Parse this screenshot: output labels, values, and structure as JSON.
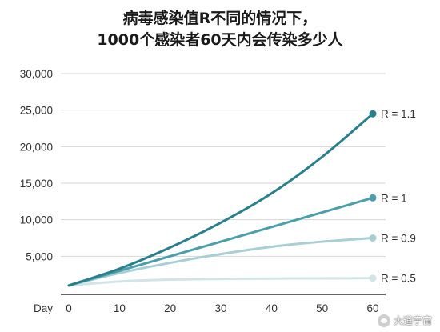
{
  "chart_data": {
    "type": "line",
    "title": "病毒感染值R不同的情况下，\n1000个感染者60天内会传染多少人",
    "xlabel": "Day",
    "ylabel": "",
    "x": [
      0,
      10,
      20,
      30,
      40,
      50,
      60
    ],
    "xticks": [
      "0",
      "10",
      "20",
      "30",
      "40",
      "50",
      "60"
    ],
    "yticks": [
      "5,000",
      "10,000",
      "15,000",
      "20,000",
      "25,000",
      "30,000"
    ],
    "xlim": [
      0,
      60
    ],
    "ylim": [
      0,
      30000
    ],
    "grid": true,
    "series": [
      {
        "name": "R = 1.1",
        "color": "#2a7f8c",
        "values": [
          1000,
          3300,
          6200,
          9600,
          13600,
          18600,
          24500
        ]
      },
      {
        "name": "R = 1",
        "color": "#4a9fab",
        "values": [
          1000,
          3000,
          5000,
          7000,
          9000,
          11000,
          13000
        ]
      },
      {
        "name": "R = 0.9",
        "color": "#a8cfd4",
        "values": [
          1000,
          2700,
          4100,
          5300,
          6300,
          7000,
          7500
        ]
      },
      {
        "name": "R = 0.5",
        "color": "#d3e4e6",
        "values": [
          1000,
          1550,
          1800,
          1900,
          1950,
          1980,
          2000
        ]
      }
    ]
  },
  "watermark": {
    "text": "大道宇宙",
    "icon": "wechat-icon"
  }
}
